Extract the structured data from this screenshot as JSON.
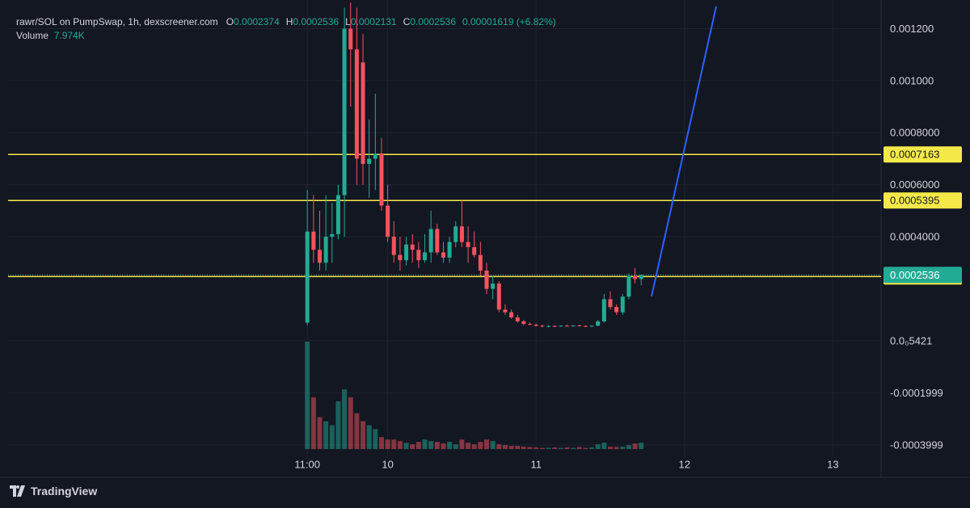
{
  "chart_data": {
    "type": "candlestick",
    "title": "rawr/SOL on PumpSwap, 1h, dexscreener.com",
    "legend": [
      {
        "label": "O",
        "value": "0.0002374"
      },
      {
        "label": "H",
        "value": "0.0002536"
      },
      {
        "label": "L",
        "value": "0.0002131"
      },
      {
        "label": "C",
        "value": "0.0002536"
      }
    ],
    "change": "0.00001619 (+6.82%)",
    "volume_label": "Volume",
    "volume_value": "7.974K",
    "up_color": "#22ab94",
    "down_color": "#f7525f",
    "x": [
      0,
      1,
      2,
      3,
      4,
      5,
      6,
      7,
      8,
      9,
      10,
      11,
      12,
      13,
      14,
      15,
      16,
      17,
      18,
      19,
      20,
      21,
      22,
      23,
      24,
      25,
      26,
      27,
      28,
      29,
      30,
      31,
      32,
      33,
      34,
      35,
      36,
      37,
      38,
      39,
      40,
      41,
      42,
      43,
      44,
      45,
      46,
      47,
      48,
      49,
      50,
      51,
      52,
      53,
      54
    ],
    "open": [
      7e-05,
      0.00042,
      0.00035,
      0.0003,
      0.0004,
      0.00041,
      0.00056,
      0.0012,
      0.00112,
      0.00107,
      0.00068,
      0.0007,
      0.00072,
      0.00052,
      0.0004,
      0.00033,
      0.00031,
      0.00037,
      0.00035,
      0.00031,
      0.00034,
      0.00043,
      0.00034,
      0.00032,
      0.00038,
      0.00044,
      0.00038,
      0.00036,
      0.00033,
      0.00027,
      0.0002,
      0.00022,
      0.00012,
      0.00011,
      9e-05,
      7.5e-05,
      6.5e-05,
      6.2e-05,
      5.8e-05,
      5.5e-05,
      5.7e-05,
      5.5e-05,
      5.8e-05,
      5.7e-05,
      5.9e-05,
      5.7e-05,
      5.5e-05,
      5.8e-05,
      7.5e-05,
      0.00016,
      0.00013,
      0.00011,
      0.00017,
      0.00025,
      0.0002374
    ],
    "high": [
      0.00058,
      0.00056,
      0.0005,
      0.00056,
      0.00053,
      0.0006,
      0.00128,
      0.0013,
      0.00128,
      0.00118,
      0.00085,
      0.00095,
      0.00078,
      0.0006,
      0.00046,
      0.0004,
      0.0004,
      0.00041,
      0.00038,
      0.00041,
      0.0005,
      0.00045,
      0.00038,
      0.0004,
      0.00046,
      0.00054,
      0.00044,
      0.00042,
      0.00038,
      0.0003,
      0.00025,
      0.00023,
      0.00014,
      0.00012,
      0.0001,
      8e-05,
      7e-05,
      6.6e-05,
      6.2e-05,
      6e-05,
      6e-05,
      6e-05,
      6.2e-05,
      6e-05,
      6.2e-05,
      6e-05,
      6e-05,
      8e-05,
      0.00018,
      0.00019,
      0.00014,
      0.00018,
      0.00026,
      0.00028,
      0.0002536
    ],
    "low": [
      6e-05,
      0.0003,
      0.00027,
      0.00027,
      0.0003,
      0.00039,
      0.0004,
      0.0009,
      0.0006,
      0.0006,
      0.00055,
      0.00058,
      0.0005,
      0.00038,
      0.0003,
      0.00027,
      0.00029,
      0.0003,
      0.00028,
      0.0003,
      0.0003,
      0.00033,
      0.0003,
      0.0003,
      0.00036,
      0.00036,
      0.0003,
      0.00032,
      0.00025,
      0.00018,
      0.00016,
      0.00011,
      0.0001,
      8.5e-05,
      7e-05,
      6e-05,
      6e-05,
      5.5e-05,
      5.2e-05,
      5.2e-05,
      5.3e-05,
      5.4e-05,
      5.5e-05,
      5.4e-05,
      5.6e-05,
      5.3e-05,
      5.4e-05,
      5.7e-05,
      7e-05,
      0.00012,
      0.0001,
      0.0001,
      0.00016,
      0.00022,
      0.0002131
    ],
    "close": [
      0.00042,
      0.00035,
      0.0003,
      0.0004,
      0.00041,
      0.00056,
      0.0012,
      0.00112,
      0.0007,
      0.00068,
      0.0007,
      0.00072,
      0.00052,
      0.0004,
      0.00033,
      0.00031,
      0.00037,
      0.00035,
      0.00031,
      0.00034,
      0.00043,
      0.00034,
      0.00032,
      0.00038,
      0.00044,
      0.00038,
      0.00036,
      0.00033,
      0.00027,
      0.0002,
      0.00022,
      0.00012,
      0.00011,
      9e-05,
      7.5e-05,
      6.5e-05,
      6.2e-05,
      5.8e-05,
      5.5e-05,
      5.7e-05,
      5.5e-05,
      5.8e-05,
      5.7e-05,
      5.9e-05,
      5.7e-05,
      5.5e-05,
      5.8e-05,
      7.5e-05,
      0.00016,
      0.00013,
      0.00011,
      0.00017,
      0.00025,
      0.0002374,
      0.0002536
    ],
    "volume": [
      135000,
      65000,
      40000,
      35000,
      30000,
      60000,
      75000,
      65000,
      45000,
      35000,
      30000,
      25000,
      15000,
      12000,
      12000,
      10000,
      8000,
      6000,
      9000,
      12000,
      10000,
      9000,
      7000,
      9000,
      6000,
      12000,
      8000,
      6000,
      9000,
      12000,
      10000,
      6000,
      5000,
      4000,
      4000,
      3000,
      2500,
      2000,
      1500,
      1500,
      2000,
      1500,
      2000,
      1500,
      2500,
      1500,
      2000,
      6000,
      8000,
      3000,
      2500,
      3000,
      5000,
      7000,
      7974
    ],
    "xlim": [
      -48.4,
      92.8
    ],
    "xticks": [
      {
        "value": 0,
        "label": "11:00"
      },
      {
        "value": 13,
        "label": "10"
      },
      {
        "value": 37,
        "label": "11"
      },
      {
        "value": 61,
        "label": "12"
      },
      {
        "value": 85,
        "label": "13"
      }
    ],
    "ylim": [
      -0.00045,
      0.00131
    ],
    "yticks": [
      {
        "value": 0.0012,
        "label": "0.001200"
      },
      {
        "value": 0.001,
        "label": "0.001000"
      },
      {
        "value": 0.0008,
        "label": "0.0008000"
      },
      {
        "value": 0.0006,
        "label": "0.0006000"
      },
      {
        "value": 0.0004,
        "label": "0.0004000"
      },
      {
        "value": 5.421e-07,
        "label": "0.0₀5421"
      },
      -0.0001999,
      -0.0003999
    ],
    "grid": true,
    "price_lines": [
      0.0007163,
      0.0005395,
      0.0002474
    ],
    "price_line_color": "#f5e94a",
    "last_price": 0.0002536,
    "branding": "TradingView"
  }
}
